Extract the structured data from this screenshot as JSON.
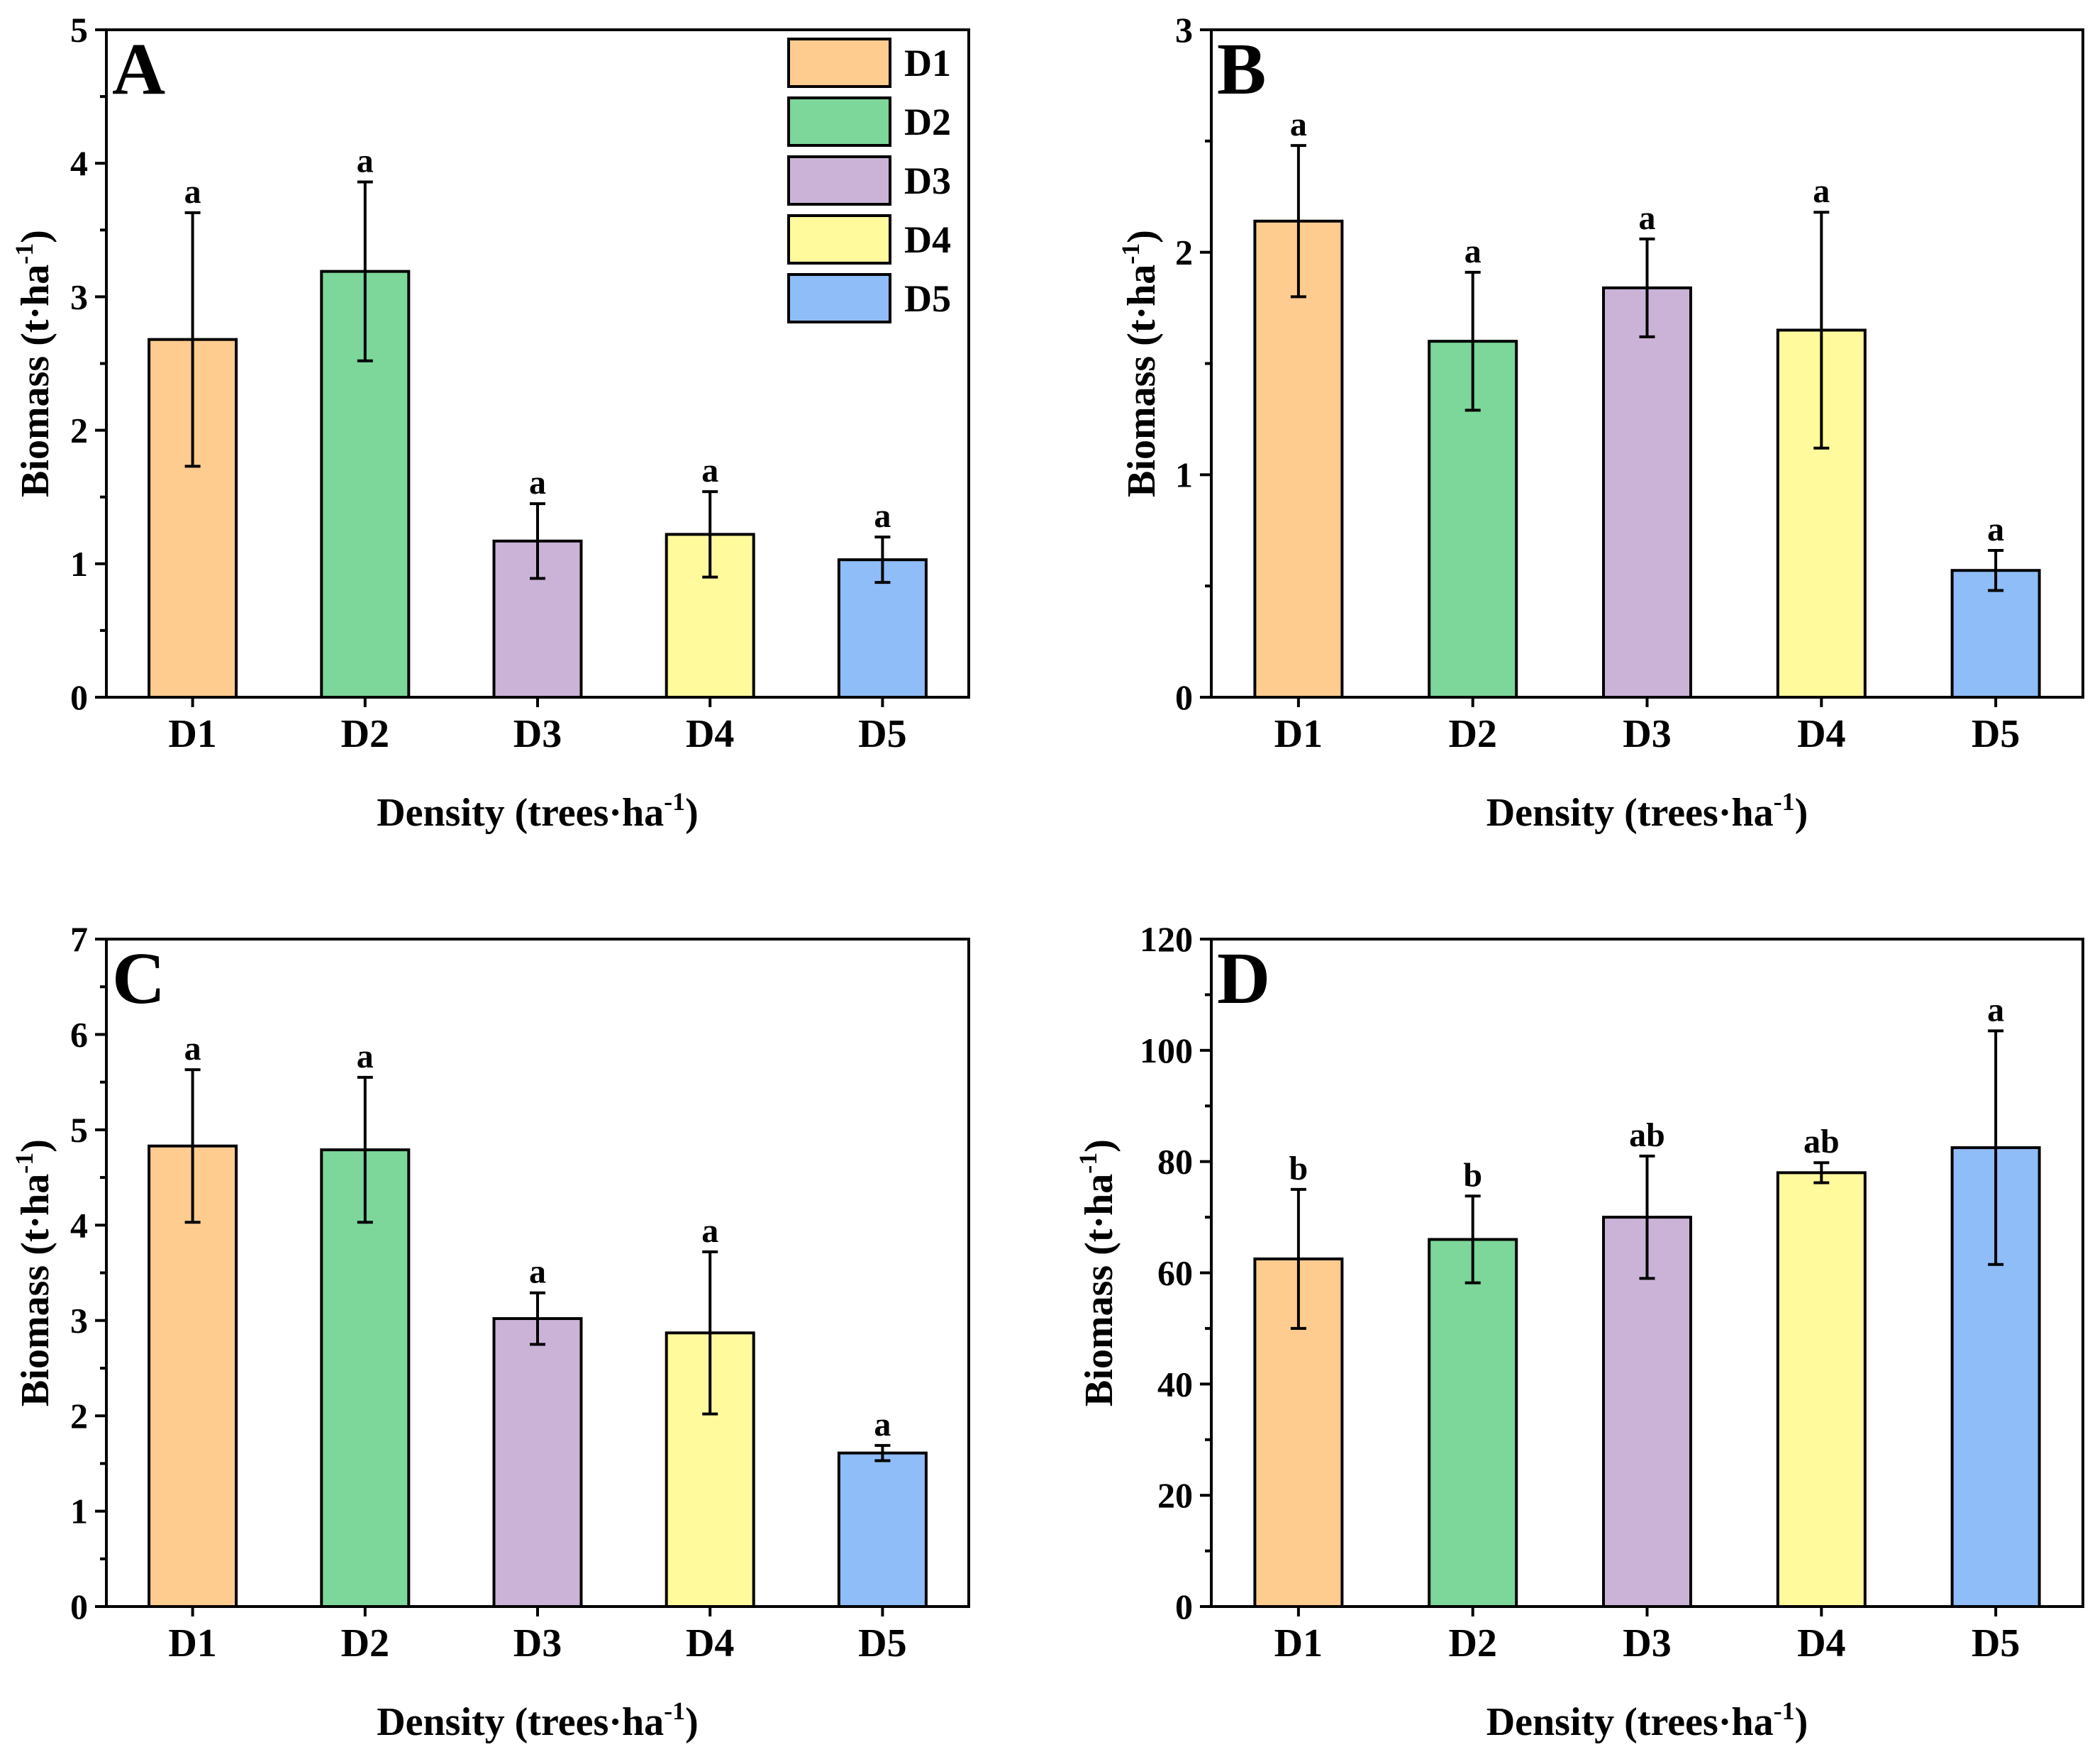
{
  "colors": {
    "D1": "#FFCC8F",
    "D2": "#7DD69A",
    "D3": "#CBB3D8",
    "D4": "#FFFA9C",
    "D5": "#8EBDF7"
  },
  "legend": {
    "entries": [
      "D1",
      "D2",
      "D3",
      "D4",
      "D5"
    ]
  },
  "chart_data": [
    {
      "type": "bar",
      "panel": "A",
      "categories": [
        "D1",
        "D2",
        "D3",
        "D4",
        "D5"
      ],
      "values": [
        2.68,
        3.19,
        1.17,
        1.22,
        1.03
      ],
      "errors": [
        0.95,
        0.67,
        0.28,
        0.32,
        0.17
      ],
      "letters": [
        "a",
        "a",
        "a",
        "a",
        "a"
      ],
      "ylim": [
        0,
        5
      ],
      "yticks": [
        0,
        1,
        2,
        3,
        4,
        5
      ],
      "ylabel": "Biomass (t·ha",
      "ylabel_sup": "-1",
      "ylabel_end": ")",
      "xlabel": "Density (trees·ha",
      "xlabel_sup": "-1",
      "xlabel_end": ")"
    },
    {
      "type": "bar",
      "panel": "B",
      "categories": [
        "D1",
        "D2",
        "D3",
        "D4",
        "D5"
      ],
      "values": [
        2.14,
        1.6,
        1.84,
        1.65,
        0.57
      ],
      "errors": [
        0.34,
        0.31,
        0.22,
        0.53,
        0.09
      ],
      "letters": [
        "a",
        "a",
        "a",
        "a",
        "a"
      ],
      "ylim": [
        0,
        3
      ],
      "yticks": [
        0,
        1,
        2,
        3
      ],
      "ylabel": "Biomass (t·ha",
      "ylabel_sup": "-1",
      "ylabel_end": ")",
      "xlabel": "Density (trees·ha",
      "xlabel_sup": "-1",
      "xlabel_end": ")"
    },
    {
      "type": "bar",
      "panel": "C",
      "categories": [
        "D1",
        "D2",
        "D3",
        "D4",
        "D5"
      ],
      "values": [
        4.83,
        4.79,
        3.02,
        2.87,
        1.61
      ],
      "errors": [
        0.8,
        0.76,
        0.27,
        0.85,
        0.08
      ],
      "letters": [
        "a",
        "a",
        "a",
        "a",
        "a"
      ],
      "ylim": [
        0,
        7
      ],
      "yticks": [
        0,
        1,
        2,
        3,
        4,
        5,
        6,
        7
      ],
      "ylabel": "Biomass (t·ha",
      "ylabel_sup": "-1",
      "ylabel_end": ")",
      "xlabel": "Density (trees·ha",
      "xlabel_sup": "-1",
      "xlabel_end": ")"
    },
    {
      "type": "bar",
      "panel": "D",
      "categories": [
        "D1",
        "D2",
        "D3",
        "D4",
        "D5"
      ],
      "values": [
        62.5,
        66.0,
        70.0,
        78.0,
        82.5
      ],
      "errors": [
        12.5,
        7.8,
        11.0,
        1.8,
        21.0
      ],
      "letters": [
        "b",
        "b",
        "ab",
        "ab",
        "a"
      ],
      "ylim": [
        0,
        120
      ],
      "yticks": [
        0,
        20,
        40,
        60,
        80,
        100,
        120
      ],
      "ylabel": "Biomass (t·ha",
      "ylabel_sup": "-1",
      "ylabel_end": ")",
      "xlabel": "Density (trees·ha",
      "xlabel_sup": "-1",
      "xlabel_end": ")"
    }
  ]
}
